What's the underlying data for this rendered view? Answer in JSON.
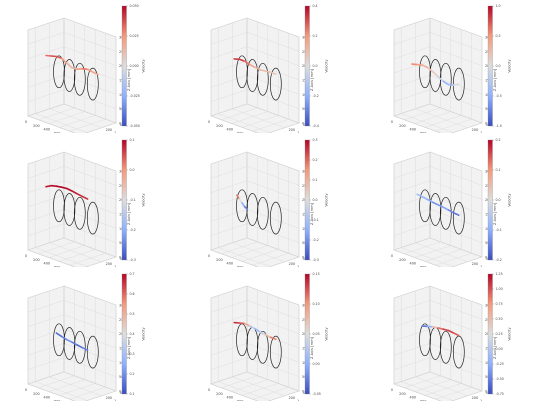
{
  "page": {
    "background": "#ffffff"
  },
  "style": {
    "pane_fill": "#f2f2f2",
    "pane_stroke": "#c8c8c8",
    "grid_color": "#d8d8d8",
    "ring_color": "#222222",
    "colormap": "coolwarm",
    "colormap_stops": [
      "#3b4cc0",
      "#8db0fe",
      "#dddddd",
      "#f49a7b",
      "#b40426"
    ]
  },
  "chart_data": [
    {
      "type": "3d-line",
      "panel": 1,
      "title": "",
      "xlabel": "X Axis [mm]",
      "ylabel": "Y [mm]",
      "zlabel": "Z Axis [mm]",
      "colorbar_label": "Velocity",
      "xticks": [
        "0",
        "200",
        "400",
        "600",
        "800",
        "1000"
      ],
      "yticks": [
        "0",
        "200",
        "400"
      ],
      "zticks": [
        "0",
        "50",
        "100",
        "150",
        "200",
        "250",
        "300"
      ],
      "colorbar_ticks": [
        "0.050",
        "0.025",
        "0.000",
        "-0.025",
        "-0.050"
      ],
      "colorbar_range": [
        -0.05,
        0.05
      ],
      "grid": true,
      "rings": [
        250,
        450,
        650,
        900
      ],
      "series": [
        {
          "x": [
            0,
            100,
            200,
            300,
            400,
            500,
            600,
            700,
            800,
            900,
            1000
          ],
          "z": [
            190,
            195,
            200,
            200,
            190,
            180,
            182,
            190,
            195,
            192,
            190
          ],
          "values": [
            0.03,
            0.035,
            0.04,
            0.03,
            0.02,
            0.01,
            0.02,
            0.03,
            0.03,
            0.02,
            0.02
          ]
        }
      ]
    },
    {
      "type": "3d-line",
      "panel": 2,
      "title": "",
      "xlabel": "X Axis [mm]",
      "ylabel": "Y [mm]",
      "zlabel": "Z Axis [mm]",
      "colorbar_label": "Velocity",
      "xticks": [
        "0",
        "200",
        "400",
        "600",
        "800",
        "1000"
      ],
      "yticks": [
        "0",
        "200",
        "400"
      ],
      "zticks": [
        "0",
        "50",
        "100",
        "150",
        "200",
        "250",
        "300"
      ],
      "colorbar_ticks": [
        "0.4",
        "0.2",
        "0.0",
        "-0.2",
        "-0.4"
      ],
      "colorbar_range": [
        -0.4,
        0.4
      ],
      "grid": true,
      "rings": [
        250,
        450,
        650,
        900
      ],
      "series": [
        {
          "x": [
            100,
            200,
            300,
            400,
            500,
            600,
            700,
            800,
            900
          ],
          "z": [
            185,
            190,
            190,
            185,
            182,
            180,
            182,
            185,
            185
          ],
          "values": [
            0.3,
            0.35,
            0.3,
            0.2,
            0.15,
            0.1,
            0.1,
            0.1,
            0.05
          ]
        }
      ]
    },
    {
      "type": "3d-line",
      "panel": 3,
      "title": "",
      "xlabel": "X Axis [mm]",
      "ylabel": "Y [mm]",
      "zlabel": "Z Axis [mm]",
      "colorbar_label": "Velocity",
      "xticks": [
        "0",
        "200",
        "400",
        "600",
        "800",
        "1000"
      ],
      "yticks": [
        "0",
        "200",
        "400"
      ],
      "zticks": [
        "0",
        "50",
        "100",
        "150",
        "200",
        "250",
        "300"
      ],
      "colorbar_ticks": [
        "1.0",
        "0.5",
        "0.0",
        "-0.5",
        "-1.0"
      ],
      "colorbar_range": [
        -1.0,
        1.0
      ],
      "grid": true,
      "rings": [
        250,
        450,
        650,
        900
      ],
      "series": [
        {
          "x": [
            0,
            100,
            200,
            300,
            400,
            500,
            600,
            700,
            800,
            900
          ],
          "z": [
            160,
            165,
            170,
            168,
            160,
            150,
            140,
            135,
            140,
            150
          ],
          "values": [
            0.6,
            0.5,
            0.4,
            0.3,
            0.2,
            0.1,
            -0.3,
            -0.6,
            -0.2,
            0.1
          ]
        }
      ]
    },
    {
      "type": "3d-line",
      "panel": 4,
      "title": "",
      "xlabel": "X Axis [mm]",
      "ylabel": "Y [mm]",
      "zlabel": "Z Axis [mm]",
      "colorbar_label": "Velocity",
      "xticks": [
        "0",
        "200",
        "400",
        "600",
        "800",
        "1000"
      ],
      "yticks": [
        "0",
        "200",
        "400"
      ],
      "zticks": [
        "0",
        "50",
        "100",
        "150",
        "200",
        "250",
        "300"
      ],
      "colorbar_ticks": [
        "0.1",
        "0.0",
        "-0.1",
        "-0.2",
        "-0.3"
      ],
      "colorbar_range": [
        -0.3,
        0.1
      ],
      "grid": true,
      "rings": [
        250,
        450,
        650,
        900
      ],
      "series": [
        {
          "x": [
            0,
            100,
            200,
            300,
            400,
            500,
            600,
            700,
            800
          ],
          "z": [
            200,
            210,
            215,
            218,
            220,
            218,
            215,
            212,
            210
          ],
          "values": [
            0.08,
            0.09,
            0.1,
            0.1,
            0.1,
            0.09,
            0.08,
            0.07,
            0.06
          ]
        }
      ]
    },
    {
      "type": "3d-line",
      "panel": 5,
      "title": "",
      "xlabel": "X Axis [mm]",
      "ylabel": "Y [mm]",
      "zlabel": "Z Axis [mm]",
      "colorbar_label": "Velocity",
      "xticks": [
        "0",
        "200",
        "400",
        "600",
        "800",
        "1000"
      ],
      "yticks": [
        "0",
        "200",
        "400"
      ],
      "zticks": [
        "0",
        "50",
        "100",
        "150",
        "200",
        "250",
        "300"
      ],
      "colorbar_ticks": [
        "0.3",
        "0.2",
        "0.1",
        "0.0",
        "-0.1",
        "-0.2",
        "-0.3"
      ],
      "colorbar_range": [
        -0.3,
        0.3
      ],
      "grid": true,
      "rings": [
        250,
        450,
        650,
        900
      ],
      "series": [
        {
          "x": [
            150,
            200,
            250,
            300,
            350
          ],
          "z": [
            180,
            170,
            160,
            150,
            145
          ],
          "values": [
            0.25,
            0.1,
            -0.1,
            -0.2,
            -0.25
          ]
        }
      ]
    },
    {
      "type": "3d-line",
      "panel": 6,
      "title": "",
      "xlabel": "X Axis [mm]",
      "ylabel": "Y [mm]",
      "zlabel": "Z Axis [mm]",
      "colorbar_label": "Velocity",
      "xticks": [
        "0",
        "200",
        "400",
        "600",
        "800",
        "1000"
      ],
      "yticks": [
        "0",
        "200",
        "400"
      ],
      "zticks": [
        "0",
        "50",
        "100",
        "150",
        "200",
        "250",
        "300"
      ],
      "colorbar_ticks": [
        "0.2",
        "0.1",
        "0.0",
        "-0.1",
        "-0.2"
      ],
      "colorbar_range": [
        -0.2,
        0.2
      ],
      "grid": true,
      "rings": [
        250,
        450,
        650,
        900
      ],
      "series": [
        {
          "x": [
            100,
            200,
            300,
            400,
            500,
            600,
            700,
            800,
            900
          ],
          "z": [
            180,
            178,
            175,
            172,
            170,
            168,
            165,
            162,
            160
          ],
          "values": [
            -0.05,
            -0.1,
            -0.08,
            -0.12,
            -0.15,
            -0.1,
            -0.12,
            -0.15,
            -0.18
          ]
        }
      ]
    },
    {
      "type": "3d-line",
      "panel": 7,
      "title": "",
      "xlabel": "X Axis [mm]",
      "ylabel": "Y [mm]",
      "zlabel": "Z Axis [mm]",
      "colorbar_label": "Velocity",
      "xticks": [
        "0",
        "200",
        "400",
        "600",
        "800",
        "1000"
      ],
      "yticks": [
        "0",
        "200",
        "400"
      ],
      "zticks": [
        "0",
        "50",
        "100",
        "150",
        "200",
        "250",
        "300"
      ],
      "colorbar_ticks": [
        "0.7",
        "0.6",
        "0.5",
        "0.4",
        "0.3",
        "0.2",
        "0.1"
      ],
      "colorbar_range": [
        0.1,
        0.7
      ],
      "grid": true,
      "rings": [
        250,
        450,
        650,
        900
      ],
      "series": [
        {
          "x": [
            200,
            300,
            400,
            500,
            600,
            700,
            800
          ],
          "z": [
            170,
            165,
            160,
            158,
            155,
            152,
            150
          ],
          "values": [
            0.15,
            0.15,
            0.2,
            0.2,
            0.15,
            0.15,
            0.2
          ]
        }
      ]
    },
    {
      "type": "3d-line",
      "panel": 8,
      "title": "",
      "xlabel": "X Axis [mm]",
      "ylabel": "Y [mm]",
      "zlabel": "Z Axis [mm]",
      "colorbar_label": "Velocity",
      "xticks": [
        "0",
        "200",
        "400",
        "600",
        "800",
        "1000"
      ],
      "yticks": [
        "0",
        "200",
        "400"
      ],
      "zticks": [
        "0",
        "50",
        "100",
        "150",
        "200",
        "250",
        "300"
      ],
      "colorbar_ticks": [
        "0.15",
        "0.10",
        "0.05",
        "0.00",
        "-0.05"
      ],
      "colorbar_range": [
        -0.05,
        0.15
      ],
      "grid": true,
      "rings": [
        250,
        450,
        650,
        900
      ],
      "series": [
        {
          "x": [
            100,
            200,
            300,
            400,
            500,
            600,
            700,
            800,
            900
          ],
          "z": [
            200,
            205,
            210,
            208,
            205,
            200,
            198,
            195,
            195
          ],
          "values": [
            0.14,
            0.13,
            0.12,
            0.06,
            0.0,
            0.02,
            0.05,
            0.1,
            0.12
          ]
        }
      ]
    },
    {
      "type": "3d-line",
      "panel": 9,
      "title": "",
      "xlabel": "X Axis [mm]",
      "ylabel": "Y [mm]",
      "zlabel": "Z Axis [mm]",
      "colorbar_label": "Velocity",
      "xticks": [
        "0",
        "200",
        "400",
        "600",
        "800",
        "1000"
      ],
      "yticks": [
        "0",
        "200",
        "400"
      ],
      "zticks": [
        "0",
        "50",
        "100",
        "150",
        "200",
        "250",
        "300"
      ],
      "colorbar_ticks": [
        "1.25",
        "1.00",
        "0.75",
        "0.50",
        "0.25",
        "0.00",
        "-0.25",
        "-0.50",
        "-0.75"
      ],
      "colorbar_range": [
        -0.75,
        1.25
      ],
      "grid": true,
      "rings": [
        250,
        450,
        650,
        900
      ],
      "series": [
        {
          "x": [
            200,
            300,
            400,
            500,
            600,
            700,
            800,
            900
          ],
          "z": [
            195,
            200,
            205,
            208,
            210,
            212,
            210,
            208
          ],
          "values": [
            -0.5,
            -0.6,
            0.2,
            0.8,
            1.0,
            1.1,
            1.0,
            0.9
          ]
        }
      ]
    }
  ]
}
